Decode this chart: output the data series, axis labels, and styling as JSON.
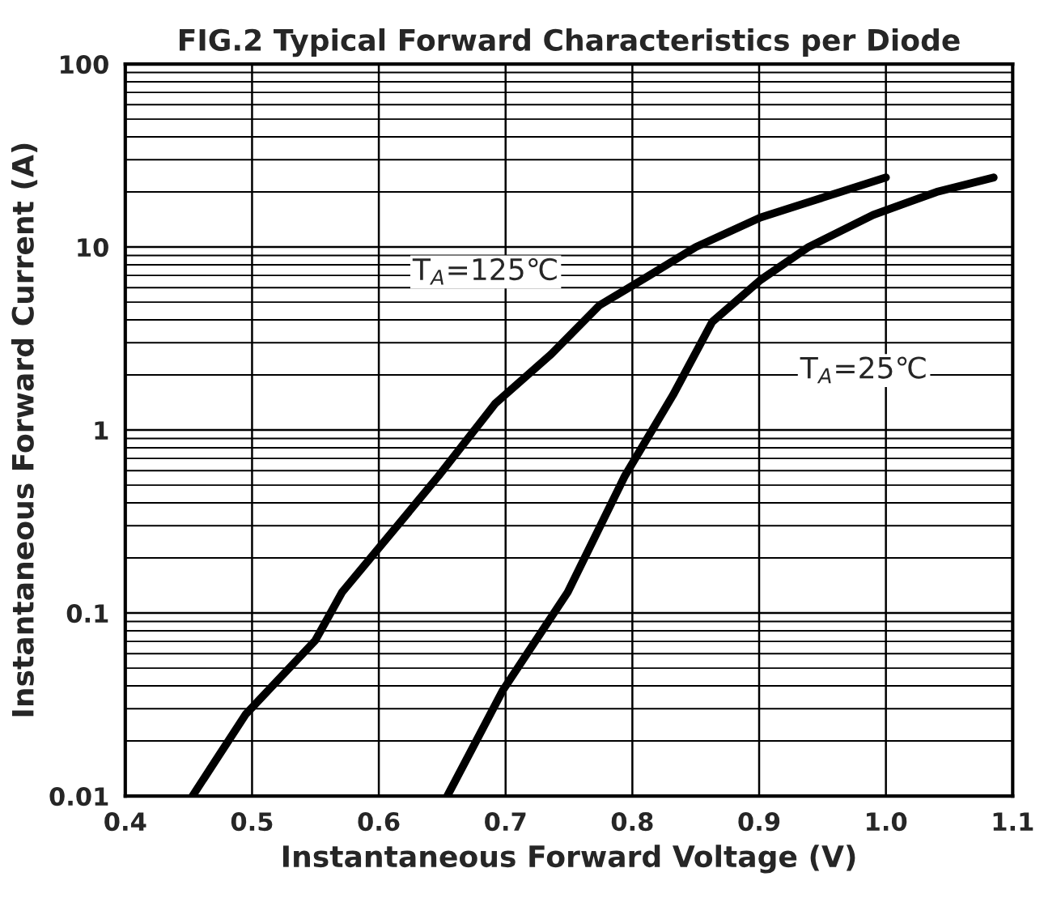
{
  "chart_data": {
    "type": "line",
    "title": "FIG.2 Typical Forward Characteristics per Diode",
    "xlabel": "Instantaneous Forward Voltage (V)",
    "ylabel": "Instantaneous Forward Current (A)",
    "series": [
      {
        "name": "T$_{A}$=125℃",
        "color": "#000000",
        "x": [
          0.453,
          0.495,
          0.55,
          0.571,
          0.603,
          0.647,
          0.692,
          0.736,
          0.774,
          0.812,
          0.85,
          0.901,
          0.964,
          1.0
        ],
        "values": [
          0.01,
          0.028,
          0.071,
          0.13,
          0.24,
          0.56,
          1.4,
          2.6,
          4.8,
          6.9,
          10,
          14.5,
          20,
          24
        ]
      },
      {
        "name": "T$_{A}$=25℃",
        "color": "#000000",
        "x": [
          0.654,
          0.698,
          0.749,
          0.794,
          0.832,
          0.863,
          0.901,
          0.939,
          0.99,
          1.04,
          1.085
        ],
        "values": [
          0.01,
          0.038,
          0.13,
          0.56,
          1.55,
          3.9,
          6.6,
          10,
          15,
          20,
          24
        ]
      }
    ],
    "log": "y",
    "xlim": [
      0.4,
      1.1
    ],
    "ylim": [
      0.01,
      100
    ],
    "xticks": [
      0.4,
      0.5,
      0.6,
      0.7,
      0.8,
      0.9,
      {
        "value": 1.0,
        "label": "1.0"
      },
      1.1
    ],
    "yticks": [
      0.01,
      0.1,
      1,
      10,
      100
    ],
    "grid": true,
    "line_style": "solid",
    "marker": "none"
  }
}
